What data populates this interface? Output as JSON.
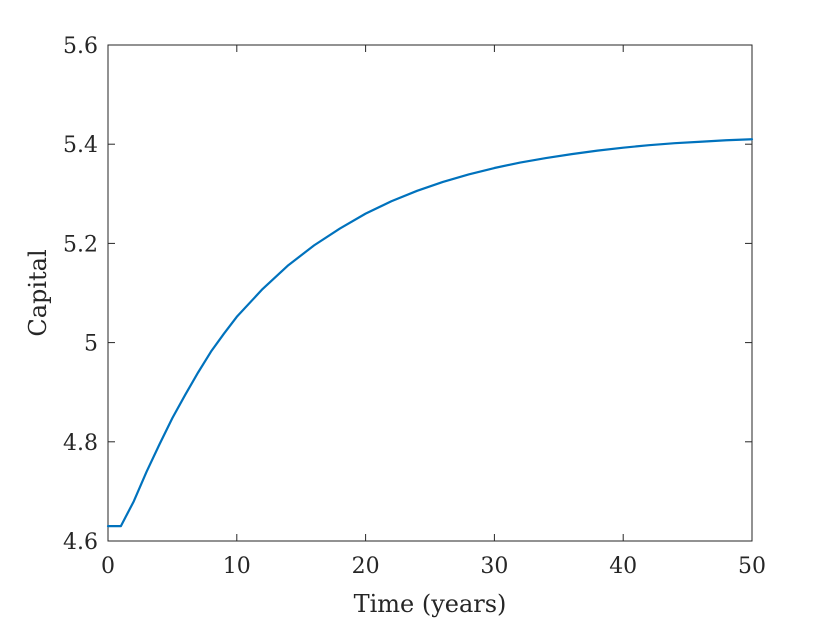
{
  "chart_data": {
    "type": "line",
    "title": "",
    "xlabel": "Time (years)",
    "ylabel": "Capital",
    "xlim": [
      0,
      50
    ],
    "ylim": [
      4.6,
      5.6
    ],
    "xticks": [
      0,
      10,
      20,
      30,
      40,
      50
    ],
    "xtick_labels": [
      "0",
      "10",
      "20",
      "30",
      "40",
      "50"
    ],
    "yticks": [
      4.6,
      4.8,
      5.0,
      5.2,
      5.4,
      5.6
    ],
    "ytick_labels": [
      "4.6",
      "4.8",
      "5",
      "5.2",
      "5.4",
      "5.6"
    ],
    "grid": false,
    "legend": "none",
    "series": [
      {
        "color": "#0072BD",
        "x": [
          0,
          1,
          2,
          3,
          4,
          5,
          6,
          7,
          8,
          9,
          10,
          12,
          14,
          16,
          18,
          20,
          22,
          24,
          26,
          28,
          30,
          32,
          34,
          36,
          38,
          40,
          42,
          44,
          46,
          48,
          50
        ],
        "y": [
          4.63,
          4.63,
          4.68,
          4.74,
          4.795,
          4.848,
          4.895,
          4.94,
          4.982,
          5.018,
          5.052,
          5.108,
          5.156,
          5.196,
          5.23,
          5.26,
          5.285,
          5.306,
          5.324,
          5.339,
          5.352,
          5.363,
          5.372,
          5.38,
          5.387,
          5.393,
          5.398,
          5.402,
          5.405,
          5.408,
          5.41
        ]
      }
    ]
  }
}
